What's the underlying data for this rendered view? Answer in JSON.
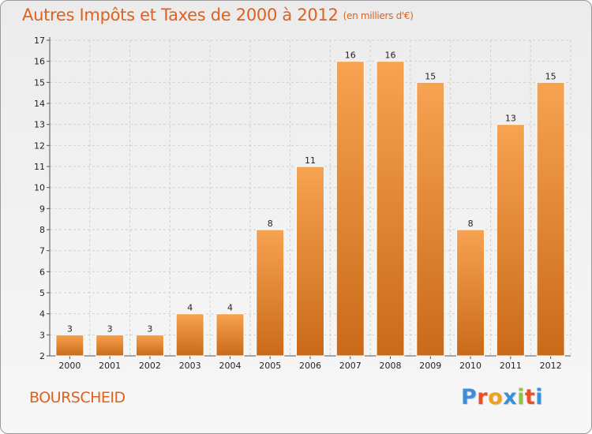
{
  "header": {
    "title": "Autres Impôts et Taxes de 2000 à 2012",
    "unit": "(en milliers d'€)"
  },
  "footer": {
    "region": "BOURSCHEID",
    "logo": [
      "P",
      "r",
      "o",
      "x",
      "i",
      "t",
      "i"
    ],
    "logo_colors": [
      "#3a8fd8",
      "#e8502a",
      "#f0a020",
      "#3a8fd8",
      "#8cc63f",
      "#e8502a",
      "#3a8fd8"
    ]
  },
  "colors": {
    "accent": "#e0601c",
    "bar_top": "#f7a351",
    "bar_bottom": "#c96a19",
    "grid": "#cfcfcf"
  },
  "chart_data": {
    "type": "bar",
    "title": "Autres Impôts et Taxes de 2000 à 2012",
    "subtitle": "(en milliers d'€)",
    "categories": [
      "2000",
      "2001",
      "2002",
      "2003",
      "2004",
      "2005",
      "2006",
      "2007",
      "2008",
      "2009",
      "2010",
      "2011",
      "2012"
    ],
    "values": [
      3,
      3,
      3,
      4,
      4,
      8,
      11,
      16,
      16,
      15,
      8,
      13,
      15
    ],
    "ylim": [
      2,
      17
    ],
    "yticks": [
      2,
      3,
      4,
      5,
      6,
      7,
      8,
      9,
      10,
      11,
      12,
      13,
      14,
      15,
      16,
      17
    ],
    "grid": true,
    "xlabel": "",
    "ylabel": ""
  }
}
